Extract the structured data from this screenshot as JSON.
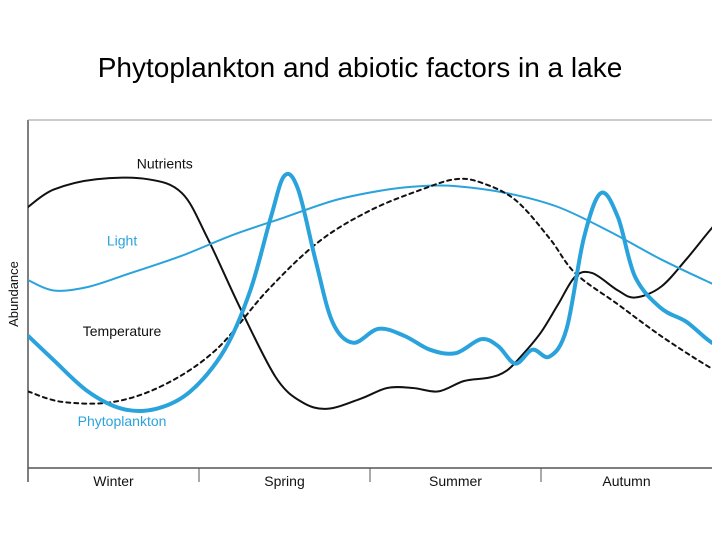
{
  "page": {
    "title": "Phytoplankton and abiotic factors in a lake"
  },
  "colors": {
    "black": "#111111",
    "blue": "#2aa3dc",
    "axis": "#555555"
  },
  "chart_data": {
    "type": "line",
    "title": "Phytoplankton and abiotic factors in a lake",
    "xlabel": "",
    "ylabel": "Abundance",
    "categories": [
      "Winter",
      "Spring",
      "Summer",
      "Autumn"
    ],
    "xlim": [
      0,
      4
    ],
    "ylim": [
      0,
      1
    ],
    "grid": false,
    "legend": "inline labels",
    "series": [
      {
        "name": "Nutrients",
        "color": "#111111",
        "dash": "solid",
        "width": 2,
        "label_at": [
          0.8,
          0.86
        ],
        "points": [
          [
            0,
            0.75
          ],
          [
            0.15,
            0.8
          ],
          [
            0.4,
            0.83
          ],
          [
            0.7,
            0.83
          ],
          [
            0.9,
            0.79
          ],
          [
            1.05,
            0.66
          ],
          [
            1.25,
            0.45
          ],
          [
            1.45,
            0.26
          ],
          [
            1.6,
            0.19
          ],
          [
            1.75,
            0.17
          ],
          [
            1.95,
            0.2
          ],
          [
            2.1,
            0.23
          ],
          [
            2.25,
            0.23
          ],
          [
            2.4,
            0.22
          ],
          [
            2.55,
            0.25
          ],
          [
            2.7,
            0.26
          ],
          [
            2.8,
            0.28
          ],
          [
            2.9,
            0.33
          ],
          [
            3.0,
            0.39
          ],
          [
            3.1,
            0.47
          ],
          [
            3.2,
            0.55
          ],
          [
            3.3,
            0.56
          ],
          [
            3.45,
            0.51
          ],
          [
            3.55,
            0.49
          ],
          [
            3.7,
            0.52
          ],
          [
            3.85,
            0.6
          ],
          [
            4.0,
            0.69
          ],
          [
            4.1,
            0.74
          ]
        ]
      },
      {
        "name": "Light",
        "color": "#2aa3dc",
        "dash": "solid",
        "width": 2,
        "label_at": [
          0.55,
          0.64
        ],
        "points": [
          [
            0,
            0.54
          ],
          [
            0.15,
            0.51
          ],
          [
            0.35,
            0.52
          ],
          [
            0.6,
            0.56
          ],
          [
            0.9,
            0.61
          ],
          [
            1.2,
            0.67
          ],
          [
            1.5,
            0.72
          ],
          [
            1.8,
            0.77
          ],
          [
            2.1,
            0.8
          ],
          [
            2.3,
            0.81
          ],
          [
            2.5,
            0.81
          ],
          [
            2.8,
            0.79
          ],
          [
            3.1,
            0.75
          ],
          [
            3.4,
            0.68
          ],
          [
            3.7,
            0.6
          ],
          [
            4.0,
            0.53
          ],
          [
            4.1,
            0.51
          ]
        ]
      },
      {
        "name": "Temperature",
        "color": "#111111",
        "dash": "dashed",
        "width": 2,
        "label_at": [
          0.55,
          0.38
        ],
        "points": [
          [
            0,
            0.22
          ],
          [
            0.2,
            0.19
          ],
          [
            0.5,
            0.19
          ],
          [
            0.8,
            0.24
          ],
          [
            1.1,
            0.34
          ],
          [
            1.4,
            0.51
          ],
          [
            1.7,
            0.65
          ],
          [
            2.0,
            0.74
          ],
          [
            2.3,
            0.8
          ],
          [
            2.5,
            0.83
          ],
          [
            2.65,
            0.82
          ],
          [
            2.85,
            0.77
          ],
          [
            3.05,
            0.66
          ],
          [
            3.2,
            0.56
          ],
          [
            3.45,
            0.47
          ],
          [
            3.7,
            0.38
          ],
          [
            3.95,
            0.3
          ],
          [
            4.1,
            0.26
          ]
        ]
      },
      {
        "name": "Phytoplankton",
        "color": "#2aa3dc",
        "dash": "solid",
        "width": 4,
        "label_at": [
          0.55,
          0.12
        ],
        "points": [
          [
            0,
            0.38
          ],
          [
            0.15,
            0.31
          ],
          [
            0.35,
            0.22
          ],
          [
            0.55,
            0.17
          ],
          [
            0.75,
            0.17
          ],
          [
            0.95,
            0.22
          ],
          [
            1.15,
            0.34
          ],
          [
            1.3,
            0.51
          ],
          [
            1.42,
            0.72
          ],
          [
            1.5,
            0.84
          ],
          [
            1.58,
            0.8
          ],
          [
            1.68,
            0.6
          ],
          [
            1.78,
            0.42
          ],
          [
            1.9,
            0.36
          ],
          [
            2.05,
            0.4
          ],
          [
            2.2,
            0.38
          ],
          [
            2.35,
            0.34
          ],
          [
            2.5,
            0.33
          ],
          [
            2.65,
            0.37
          ],
          [
            2.75,
            0.35
          ],
          [
            2.85,
            0.3
          ],
          [
            2.95,
            0.34
          ],
          [
            3.05,
            0.32
          ],
          [
            3.15,
            0.4
          ],
          [
            3.25,
            0.66
          ],
          [
            3.35,
            0.79
          ],
          [
            3.45,
            0.72
          ],
          [
            3.55,
            0.55
          ],
          [
            3.7,
            0.46
          ],
          [
            3.85,
            0.42
          ],
          [
            4.0,
            0.36
          ],
          [
            4.1,
            0.35
          ]
        ]
      }
    ]
  }
}
